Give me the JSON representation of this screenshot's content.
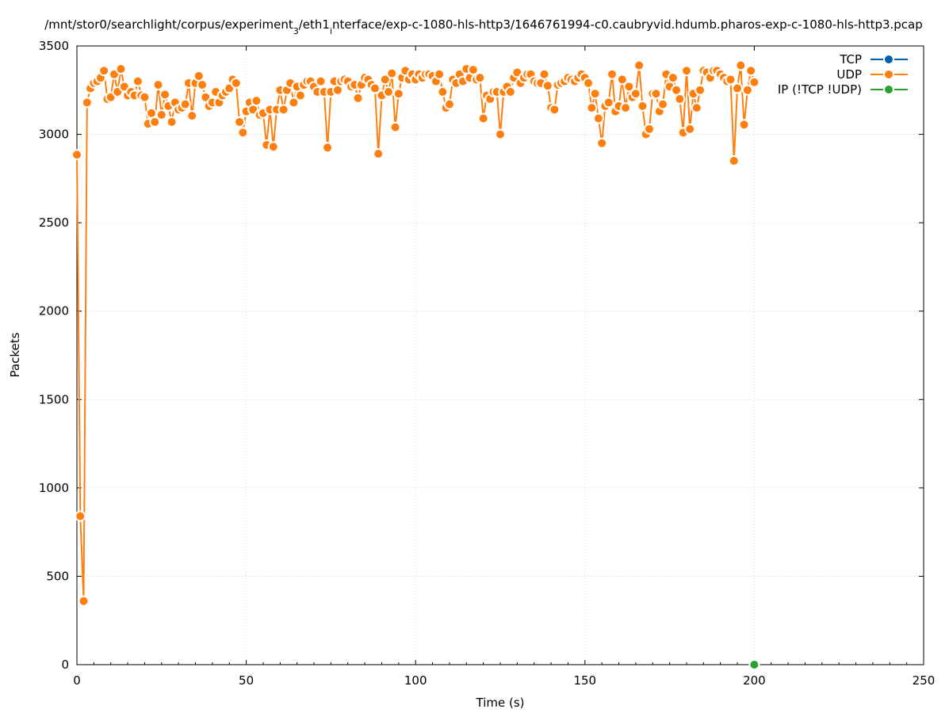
{
  "chart_data": {
    "type": "line",
    "title_parts": [
      {
        "text": "/mnt/stor0/searchlight/corpus/experiment",
        "sub": false
      },
      {
        "text": "3",
        "sub": true
      },
      {
        "text": "/eth1",
        "sub": false
      },
      {
        "text": "i",
        "sub": true
      },
      {
        "text": "nterface/exp-c-1080-hls-http3/1646761994-c0.caubryvid.hdumb.pharos-exp-c-1080-hls-http3.pcap",
        "sub": false
      }
    ],
    "xlabel": "Time (s)",
    "ylabel": "Packets",
    "xlim": [
      0,
      250
    ],
    "ylim": [
      0,
      3500
    ],
    "x_ticks": [
      0,
      50,
      100,
      150,
      200,
      250
    ],
    "y_ticks": [
      0,
      500,
      1000,
      1500,
      2000,
      2500,
      3000,
      3500
    ],
    "grid": true,
    "legend_position": "top-right",
    "series": [
      {
        "name": "TCP",
        "color": "#0060ad",
        "x": [],
        "y": []
      },
      {
        "name": "UDP",
        "color": "#ff7f0e",
        "x": [
          0,
          1,
          2,
          3,
          4,
          5,
          6,
          7,
          8,
          9,
          10,
          11,
          12,
          13,
          14,
          15,
          16,
          17,
          18,
          19,
          20,
          21,
          22,
          23,
          24,
          25,
          26,
          27,
          28,
          29,
          30,
          31,
          32,
          33,
          34,
          35,
          36,
          37,
          38,
          39,
          40,
          41,
          42,
          43,
          44,
          45,
          46,
          47,
          48,
          49,
          50,
          51,
          52,
          53,
          54,
          55,
          56,
          57,
          58,
          59,
          60,
          61,
          62,
          63,
          64,
          65,
          66,
          67,
          68,
          69,
          70,
          71,
          72,
          73,
          74,
          75,
          76,
          77,
          78,
          79,
          80,
          81,
          82,
          83,
          84,
          85,
          86,
          87,
          88,
          89,
          90,
          91,
          92,
          93,
          94,
          95,
          96,
          97,
          98,
          99,
          100,
          101,
          102,
          103,
          104,
          105,
          106,
          107,
          108,
          109,
          110,
          111,
          112,
          113,
          114,
          115,
          116,
          117,
          118,
          119,
          120,
          121,
          122,
          123,
          124,
          125,
          126,
          127,
          128,
          129,
          130,
          131,
          132,
          133,
          134,
          135,
          136,
          137,
          138,
          139,
          140,
          141,
          142,
          143,
          144,
          145,
          146,
          147,
          148,
          149,
          150,
          151,
          152,
          153,
          154,
          155,
          156,
          157,
          158,
          159,
          160,
          161,
          162,
          163,
          164,
          165,
          166,
          167,
          168,
          169,
          170,
          171,
          172,
          173,
          174,
          175,
          176,
          177,
          178,
          179,
          180,
          181,
          182,
          183,
          184,
          185,
          186,
          187,
          188,
          189,
          190,
          191,
          192,
          193,
          194,
          195,
          196,
          197,
          198,
          199,
          200
        ],
        "y": [
          2885,
          840,
          360,
          3180,
          3260,
          3290,
          3300,
          3320,
          3360,
          3200,
          3210,
          3340,
          3240,
          3370,
          3270,
          3220,
          3240,
          3220,
          3300,
          3220,
          3210,
          3060,
          3120,
          3070,
          3280,
          3110,
          3225,
          3160,
          3070,
          3180,
          3140,
          3150,
          3170,
          3290,
          3105,
          3290,
          3330,
          3280,
          3210,
          3160,
          3180,
          3240,
          3180,
          3220,
          3240,
          3260,
          3310,
          3290,
          3070,
          3010,
          3130,
          3180,
          3140,
          3190,
          3110,
          3120,
          2940,
          3140,
          2930,
          3140,
          3250,
          3140,
          3250,
          3290,
          3180,
          3270,
          3220,
          3280,
          3300,
          3300,
          3270,
          3240,
          3300,
          3240,
          2925,
          3240,
          3300,
          3250,
          3300,
          3310,
          3300,
          3270,
          3280,
          3205,
          3280,
          3320,
          3310,
          3280,
          3260,
          2890,
          3220,
          3310,
          3240,
          3345,
          3040,
          3230,
          3320,
          3360,
          3310,
          3340,
          3310,
          3340,
          3320,
          3340,
          3340,
          3330,
          3300,
          3340,
          3240,
          3150,
          3170,
          3310,
          3290,
          3340,
          3300,
          3370,
          3320,
          3365,
          3310,
          3320,
          3090,
          3220,
          3200,
          3240,
          3240,
          3000,
          3240,
          3270,
          3240,
          3320,
          3350,
          3290,
          3320,
          3340,
          3340,
          3300,
          3290,
          3290,
          3340,
          3275,
          3150,
          3140,
          3280,
          3290,
          3300,
          3320,
          3310,
          3300,
          3320,
          3340,
          3320,
          3290,
          3150,
          3230,
          3090,
          2950,
          3160,
          3180,
          3340,
          3130,
          3160,
          3310,
          3150,
          3270,
          3210,
          3230,
          3390,
          3160,
          3000,
          3030,
          3230,
          3230,
          3130,
          3170,
          3340,
          3270,
          3320,
          3250,
          3200,
          3010,
          3360,
          3030,
          3230,
          3150,
          3250,
          3360,
          3350,
          3320,
          3360,
          3360,
          3340,
          3320,
          3300,
          3310,
          2850,
          3260,
          3390,
          3055,
          3250,
          3360,
          3295
        ]
      },
      {
        "name": "IP (!TCP  !UDP)",
        "color": "#2ca02c",
        "x": [
          200
        ],
        "y": [
          0
        ]
      }
    ]
  }
}
